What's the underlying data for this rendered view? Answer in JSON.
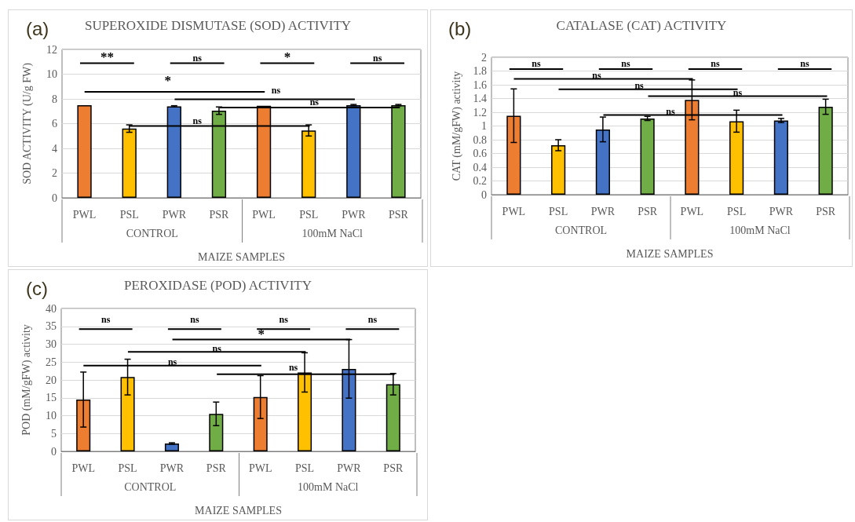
{
  "chart_data": [
    {
      "type": "bar",
      "title": "SUPEROXIDE DISMUTASE (SOD) ACTIVITY",
      "xlabel": "MAIZE SAMPLES",
      "ylabel": "SOD ACTIVITY (U/g FW)",
      "categories": [
        "PWL",
        "PSL",
        "PWR",
        "PSR",
        "PWL",
        "PSL",
        "PWR",
        "PSR"
      ],
      "values": [
        7.5,
        5.6,
        7.4,
        7.05,
        7.45,
        5.45,
        7.5,
        7.5
      ],
      "errors": [
        null,
        0.3,
        0.05,
        0.3,
        null,
        0.45,
        0.05,
        0.05
      ],
      "colors": [
        "#ed7d31",
        "#ffc000",
        "#4472c4",
        "#70ad47",
        "#ed7d31",
        "#ffc000",
        "#4472c4",
        "#70ad47"
      ],
      "ylim": [
        0,
        12
      ],
      "yticks": [
        0,
        2,
        4,
        6,
        8,
        10,
        12
      ],
      "grid": "y",
      "annotations": [
        "(a)",
        "CONTROL",
        "100mM NaCl",
        "**",
        "ns",
        "*",
        "ns",
        "*",
        "ns",
        "ns",
        "ns"
      ]
    },
    {
      "type": "bar",
      "title": "CATALASE (CAT) ACTIVITY",
      "xlabel": "MAIZE SAMPLES",
      "ylabel": "CAT (mM/gFW) activity",
      "categories": [
        "PWL",
        "PSL",
        "PWR",
        "PSR",
        "PWL",
        "PSL",
        "PWR",
        "PSR"
      ],
      "values": [
        1.15,
        0.72,
        0.95,
        1.11,
        1.38,
        1.07,
        1.08,
        1.28
      ],
      "errors": [
        0.39,
        0.08,
        0.18,
        0.03,
        0.29,
        0.16,
        0.03,
        0.11
      ],
      "colors": [
        "#ed7d31",
        "#ffc000",
        "#4472c4",
        "#70ad47",
        "#ed7d31",
        "#ffc000",
        "#4472c4",
        "#70ad47"
      ],
      "ylim": [
        0,
        2
      ],
      "yticks": [
        0,
        0.2,
        0.4,
        0.6,
        0.8,
        1,
        1.2,
        1.4,
        1.6,
        1.8,
        2
      ],
      "grid": "y",
      "annotations": [
        "(b)",
        "CONTROL",
        "100mM NaCl",
        "ns",
        "ns",
        "ns",
        "ns",
        "ns",
        "ns",
        "ns",
        "ns"
      ]
    },
    {
      "type": "bar",
      "title": "PEROXIDASE (POD) ACTIVITY",
      "xlabel": "MAIZE SAMPLES",
      "ylabel": "POD (mM/gFW) activity",
      "categories": [
        "PWL",
        "PSL",
        "PWR",
        "PSR",
        "PWL",
        "PSL",
        "PWR",
        "PSR"
      ],
      "values": [
        14.5,
        20.8,
        2.2,
        10.5,
        15.2,
        22.1,
        23.1,
        18.8
      ],
      "errors": [
        7.7,
        5,
        0.2,
        3.3,
        6,
        5.5,
        8.2,
        3
      ],
      "colors": [
        "#ed7d31",
        "#ffc000",
        "#4472c4",
        "#70ad47",
        "#ed7d31",
        "#ffc000",
        "#4472c4",
        "#70ad47"
      ],
      "ylim": [
        0,
        40
      ],
      "yticks": [
        0,
        5,
        10,
        15,
        20,
        25,
        30,
        35,
        40
      ],
      "grid": "y",
      "annotations": [
        "(c)",
        "CONTROL",
        "100mM NaCl",
        "ns",
        "ns",
        "ns",
        "ns",
        "*",
        "ns",
        "ns",
        "ns"
      ]
    }
  ]
}
